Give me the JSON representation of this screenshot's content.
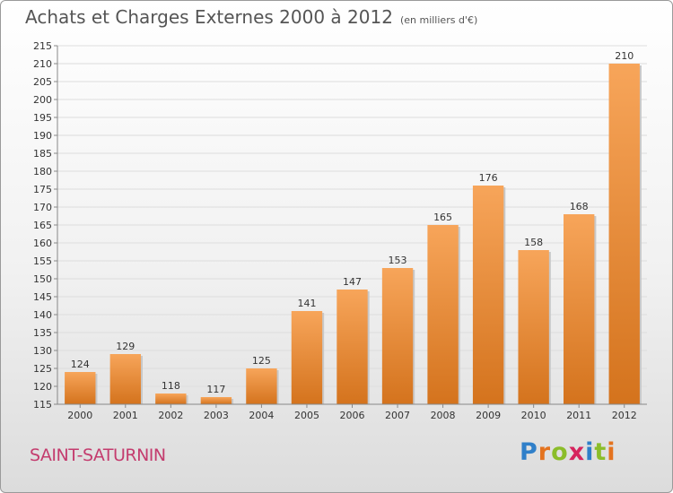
{
  "header": {
    "title": "Achats et Charges Externes 2000 à 2012",
    "unit": "(en milliers d'€)"
  },
  "footer": {
    "commune": "SAINT-SATURNIN",
    "logo_letters": [
      {
        "char": "P",
        "color": "#2f7fc9"
      },
      {
        "char": "r",
        "color": "#e4731f"
      },
      {
        "char": "o",
        "color": "#8bbd2a"
      },
      {
        "char": "x",
        "color": "#d6245d"
      },
      {
        "char": "i",
        "color": "#2f7fc9"
      },
      {
        "char": "t",
        "color": "#8bbd2a"
      },
      {
        "char": "i",
        "color": "#e4731f"
      }
    ]
  },
  "colors": {
    "bar_top": "#f7a55a",
    "bar_bottom": "#d4731d",
    "bar_shadow": "#c8c8c8",
    "grid": "#dddddd",
    "axis": "#888888",
    "text": "#333333"
  },
  "chart_data": {
    "type": "bar",
    "categories": [
      "2000",
      "2001",
      "2002",
      "2003",
      "2004",
      "2005",
      "2006",
      "2007",
      "2008",
      "2009",
      "2010",
      "2011",
      "2012"
    ],
    "values": [
      124,
      129,
      118,
      117,
      125,
      141,
      147,
      153,
      165,
      176,
      158,
      168,
      210
    ],
    "data_labels": [
      "124",
      "129",
      "118",
      "117",
      "125",
      "141",
      "147",
      "153",
      "165",
      "176",
      "158",
      "168",
      "210"
    ],
    "title": "Achats et Charges Externes 2000 à 2012",
    "xlabel": "",
    "ylabel": "",
    "ylim": [
      115,
      215
    ],
    "yticks": [
      "115",
      "120",
      "125",
      "130",
      "135",
      "140",
      "145",
      "150",
      "155",
      "160",
      "165",
      "170",
      "175",
      "180",
      "185",
      "190",
      "195",
      "200",
      "205",
      "210",
      "215"
    ],
    "grid": true,
    "legend": "none"
  }
}
